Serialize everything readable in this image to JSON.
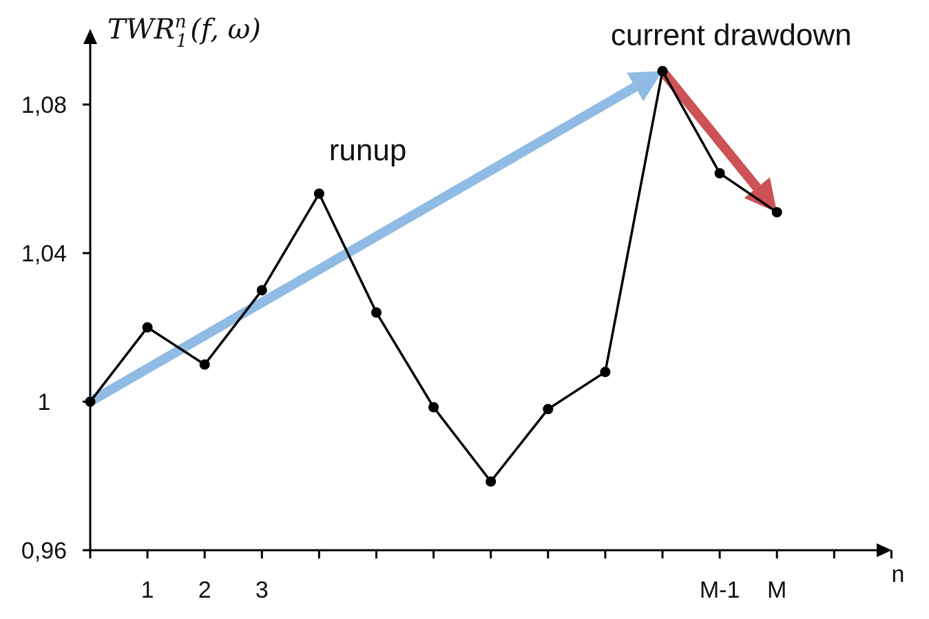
{
  "chart_data": {
    "type": "line",
    "title": "",
    "ylabel": "TWR₁ⁿ(f, ω)",
    "ylabel_parts": {
      "base": "TWR",
      "sub": "1",
      "sup": "n",
      "tail": "(f, ω)"
    },
    "xlabel": "n",
    "ylim": [
      0.96,
      1.095
    ],
    "xlim": [
      0,
      14
    ],
    "yticks": [
      0.96,
      1.0,
      1.04,
      1.08
    ],
    "ytick_labels": [
      "0,96",
      "1",
      "1,04",
      "1,08"
    ],
    "xticks": [
      0,
      1,
      2,
      3,
      4,
      5,
      6,
      7,
      8,
      9,
      10,
      11,
      12,
      13,
      14
    ],
    "xtick_labels": [
      {
        "x": 1,
        "label": "1"
      },
      {
        "x": 2,
        "label": "2"
      },
      {
        "x": 3,
        "label": "3"
      },
      {
        "x": 11,
        "label": "M-1"
      },
      {
        "x": 12,
        "label": "M"
      }
    ],
    "series": [
      {
        "x": [
          0,
          1,
          2,
          3,
          4,
          5,
          6,
          7,
          8,
          9,
          10,
          11,
          12
        ],
        "values": [
          1.0,
          1.02,
          1.01,
          1.03,
          1.056,
          1.024,
          0.9985,
          0.9785,
          0.998,
          1.008,
          1.089,
          1.0615,
          1.051
        ],
        "color": "#000000"
      }
    ],
    "annotations": [
      {
        "text": "runup",
        "x": 4.85,
        "y": 1.065
      },
      {
        "text": "current drawdown",
        "x": 11.2,
        "y": 1.096
      }
    ],
    "arrows": [
      {
        "name": "runup",
        "from": [
          0,
          1.0
        ],
        "to": [
          10,
          1.089
        ],
        "color": "#8fbbe4"
      },
      {
        "name": "current drawdown",
        "from": [
          10,
          1.089
        ],
        "to": [
          12,
          1.051
        ],
        "color": "#cd5257"
      }
    ],
    "grid": false,
    "legend": "none"
  }
}
